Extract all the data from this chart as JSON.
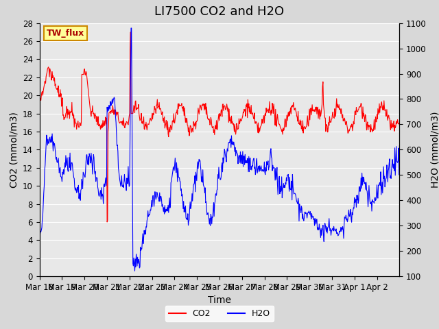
{
  "title": "LI7500 CO2 and H2O",
  "xlabel": "Time",
  "ylabel_left": "CO2 (mmol/m3)",
  "ylabel_right": "H2O (mmol/m3)",
  "ylim_left": [
    0,
    28
  ],
  "ylim_right": [
    100,
    1100
  ],
  "yticks_left": [
    0,
    2,
    4,
    6,
    8,
    10,
    12,
    14,
    16,
    18,
    20,
    22,
    24,
    26,
    28
  ],
  "yticks_right": [
    100,
    200,
    300,
    400,
    500,
    600,
    700,
    800,
    900,
    1000,
    1100
  ],
  "xtick_labels": [
    "Mar 18",
    "Mar 19",
    "Mar 20",
    "Mar 21",
    "Mar 22",
    "Mar 23",
    "Mar 24",
    "Mar 25",
    "Mar 26",
    "Mar 27",
    "Mar 28",
    "Mar 29",
    "Mar 30",
    "Mar 31",
    "Apr 1",
    "Apr 2"
  ],
  "co2_color": "#ff0000",
  "h2o_color": "#0000ff",
  "bg_color": "#d8d8d8",
  "plot_bg_color": "#e8e8e8",
  "grid_color": "#ffffff",
  "annotation_text": "TW_flux",
  "annotation_bg": "#ffff99",
  "annotation_border": "#cc8800",
  "legend_co2": "CO2",
  "legend_h2o": "H2O",
  "title_fontsize": 13,
  "axis_label_fontsize": 10,
  "tick_fontsize": 8.5
}
